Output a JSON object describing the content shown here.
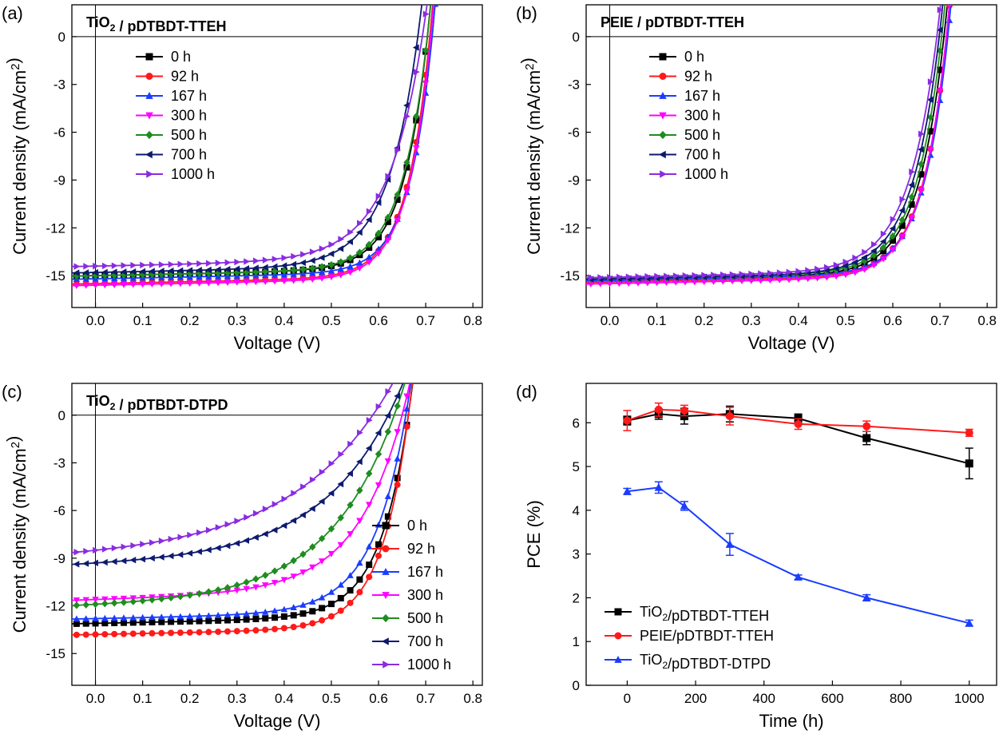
{
  "panels": [
    {
      "label": "(a)",
      "title": "TiO₂ / pDTBDT-TTEH",
      "xlabel": "Voltage (V)",
      "ylabel": "Current density (mA/cm²)",
      "xlim": [
        -0.05,
        0.82
      ],
      "ylim": [
        -17.0,
        2.0
      ],
      "xticks": [
        "0.0",
        "0.1",
        "0.2",
        "0.3",
        "0.4",
        "0.5",
        "0.6",
        "0.7",
        "0.8"
      ],
      "yticks": [
        "0",
        "-3",
        "-6",
        "-9",
        "-12",
        "-15"
      ],
      "legend": [
        "0 h",
        "92 h",
        "167 h",
        "300 h",
        "500 h",
        "700 h",
        "1000 h"
      ]
    },
    {
      "label": "(b)",
      "title": "PEIE / pDTBDT-TTEH",
      "xlabel": "Voltage (V)",
      "ylabel": "Current density (mA/cm²)",
      "xlim": [
        -0.05,
        0.82
      ],
      "ylim": [
        -17.0,
        2.0
      ],
      "xticks": [
        "0.0",
        "0.1",
        "0.2",
        "0.3",
        "0.4",
        "0.5",
        "0.6",
        "0.7",
        "0.8"
      ],
      "yticks": [
        "0",
        "-3",
        "-6",
        "-9",
        "-12",
        "-15"
      ],
      "legend": [
        "0 h",
        "92 h",
        "167 h",
        "300 h",
        "500 h",
        "700 h",
        "1000 h"
      ]
    },
    {
      "label": "(c)",
      "title": "TiO₂ / pDTBDT-DTPD",
      "xlabel": "Voltage (V)",
      "ylabel": "Current density (mA/cm²)",
      "xlim": [
        -0.05,
        0.82
      ],
      "ylim": [
        -17.0,
        2.0
      ],
      "xticks": [
        "0.0",
        "0.1",
        "0.2",
        "0.3",
        "0.4",
        "0.5",
        "0.6",
        "0.7",
        "0.8"
      ],
      "yticks": [
        "0",
        "-3",
        "-6",
        "-9",
        "-12",
        "-15"
      ],
      "legend": [
        "0 h",
        "92 h",
        "167 h",
        "300 h",
        "500 h",
        "700 h",
        "1000 h"
      ]
    },
    {
      "label": "(d)",
      "xlabel": "Time (h)",
      "ylabel": "PCE (%)",
      "xlim": [
        -120,
        1080
      ],
      "ylim": [
        0,
        6.9
      ],
      "xticks": [
        "0",
        "200",
        "400",
        "600",
        "800",
        "1000"
      ],
      "yticks": [
        "0",
        "1",
        "2",
        "3",
        "4",
        "5",
        "6"
      ],
      "legend": [
        "TiO₂/pDTBDT-TTEH",
        "PEIE/pDTBDT-TTEH",
        "TiO₂/pDTBDT-DTPD"
      ]
    }
  ],
  "colors": {
    "0 h": "#000000",
    "92 h": "#ff1a1a",
    "167 h": "#1a3cff",
    "300 h": "#ff00ff",
    "500 h": "#1f8c1f",
    "700 h": "#0d1a6e",
    "1000 h": "#8a2be2",
    "pce": [
      "#000000",
      "#ff1a1a",
      "#1a3cff"
    ]
  },
  "chart_data": [
    {
      "type": "line",
      "panel": "(a)",
      "title": "TiO₂ / pDTBDT-TTEH",
      "xlabel": "Voltage (V)",
      "ylabel": "Current density (mA/cm²)",
      "xlim": [
        -0.05,
        0.82
      ],
      "ylim": [
        -17.0,
        2.0
      ],
      "series": [
        {
          "name": "0 h",
          "marker": "square",
          "jsc": 15.0,
          "voc": 0.705,
          "n": 1.7
        },
        {
          "name": "92 h",
          "marker": "circle",
          "jsc": 15.5,
          "voc": 0.71,
          "n": 1.6
        },
        {
          "name": "167 h",
          "marker": "triangle-up",
          "jsc": 15.2,
          "voc": 0.715,
          "n": 1.6
        },
        {
          "name": "300 h",
          "marker": "triangle-down",
          "jsc": 15.6,
          "voc": 0.712,
          "n": 1.6
        },
        {
          "name": "500 h",
          "marker": "diamond",
          "jsc": 15.0,
          "voc": 0.705,
          "n": 1.8
        },
        {
          "name": "700 h",
          "marker": "triangle-left",
          "jsc": 14.8,
          "voc": 0.685,
          "n": 2.1
        },
        {
          "name": "1000 h",
          "marker": "triangle-right",
          "jsc": 14.4,
          "voc": 0.695,
          "n": 2.4
        }
      ]
    },
    {
      "type": "line",
      "panel": "(b)",
      "title": "PEIE / pDTBDT-TTEH",
      "xlabel": "Voltage (V)",
      "ylabel": "Current density (mA/cm²)",
      "xlim": [
        -0.05,
        0.82
      ],
      "ylim": [
        -17.0,
        2.0
      ],
      "series": [
        {
          "name": "0 h",
          "marker": "square",
          "jsc": 15.3,
          "voc": 0.71,
          "n": 1.8
        },
        {
          "name": "92 h",
          "marker": "circle",
          "jsc": 15.4,
          "voc": 0.715,
          "n": 1.7
        },
        {
          "name": "167 h",
          "marker": "triangle-up",
          "jsc": 15.3,
          "voc": 0.718,
          "n": 1.7
        },
        {
          "name": "300 h",
          "marker": "triangle-down",
          "jsc": 15.5,
          "voc": 0.715,
          "n": 1.7
        },
        {
          "name": "500 h",
          "marker": "diamond",
          "jsc": 15.2,
          "voc": 0.705,
          "n": 1.8
        },
        {
          "name": "700 h",
          "marker": "triangle-left",
          "jsc": 15.2,
          "voc": 0.7,
          "n": 1.9
        },
        {
          "name": "1000 h",
          "marker": "triangle-right",
          "jsc": 15.1,
          "voc": 0.695,
          "n": 2.0
        }
      ]
    },
    {
      "type": "line",
      "panel": "(c)",
      "title": "TiO₂ / pDTBDT-DTPD",
      "xlabel": "Voltage (V)",
      "ylabel": "Current density (mA/cm²)",
      "xlim": [
        -0.05,
        0.82
      ],
      "ylim": [
        -17.0,
        2.0
      ],
      "series": [
        {
          "name": "0 h",
          "marker": "square",
          "jsc": 13.1,
          "voc": 0.665,
          "n": 2.0
        },
        {
          "name": "92 h",
          "marker": "circle",
          "jsc": 13.8,
          "voc": 0.665,
          "n": 1.9
        },
        {
          "name": "167 h",
          "marker": "triangle-up",
          "jsc": 12.8,
          "voc": 0.66,
          "n": 2.3
        },
        {
          "name": "300 h",
          "marker": "triangle-down",
          "jsc": 11.6,
          "voc": 0.655,
          "n": 3.2
        },
        {
          "name": "500 h",
          "marker": "diamond",
          "jsc": 11.9,
          "voc": 0.64,
          "n": 4.5
        },
        {
          "name": "700 h",
          "marker": "triangle-left",
          "jsc": 9.3,
          "voc": 0.63,
          "n": 5.0
        },
        {
          "name": "1000 h",
          "marker": "triangle-right",
          "jsc": 8.5,
          "voc": 0.6,
          "n": 6.5
        }
      ]
    },
    {
      "type": "line",
      "panel": "(d)",
      "xlabel": "Time (h)",
      "ylabel": "PCE (%)",
      "xlim": [
        -120,
        1080
      ],
      "ylim": [
        0,
        6.9
      ],
      "x": [
        0,
        92,
        167,
        300,
        500,
        700,
        1000
      ],
      "series": [
        {
          "name": "TiO₂/pDTBDT-TTEH",
          "marker": "square",
          "values": [
            6.05,
            6.2,
            6.15,
            6.2,
            6.1,
            5.65,
            5.07
          ],
          "errors": [
            0.1,
            0.12,
            0.18,
            0.18,
            0.1,
            0.15,
            0.35
          ]
        },
        {
          "name": "PEIE/pDTBDT-TTEH",
          "marker": "circle",
          "values": [
            6.05,
            6.3,
            6.28,
            6.15,
            5.97,
            5.92,
            5.77
          ],
          "errors": [
            0.23,
            0.15,
            0.12,
            0.2,
            0.12,
            0.12,
            0.08
          ]
        },
        {
          "name": "TiO₂/pDTBDT-DTPD",
          "marker": "triangle-up",
          "values": [
            4.43,
            4.52,
            4.1,
            3.22,
            2.47,
            2.0,
            1.42
          ],
          "errors": [
            0.07,
            0.13,
            0.1,
            0.25,
            0.05,
            0.07,
            0.07
          ]
        }
      ]
    }
  ]
}
